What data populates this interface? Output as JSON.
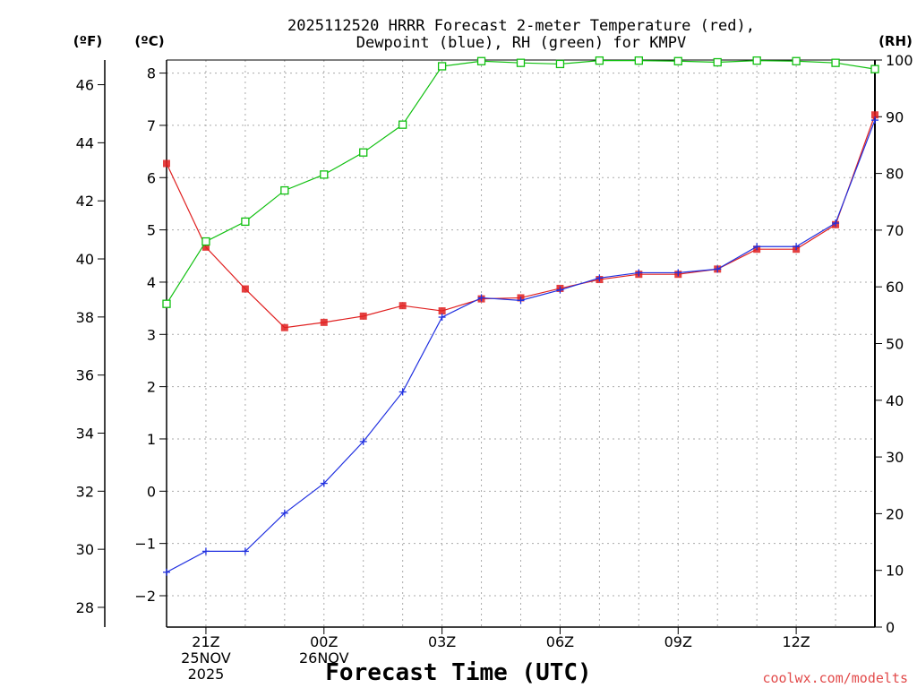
{
  "chart_data": {
    "type": "line",
    "title_line1": "2025112520 HRRR Forecast 2-meter Temperature (red),",
    "title_line2": "Dewpoint (blue), RH (green) for KMPV",
    "xlabel": "Forecast Time (UTC)",
    "credit": "coolwx.com/modelts",
    "units": {
      "fahrenheit": "(ºF)",
      "celsius": "(ºC)",
      "rh": "(RH)"
    },
    "x_hours": [
      0,
      1,
      2,
      3,
      4,
      5,
      6,
      7,
      8,
      9,
      10,
      11,
      12,
      13,
      14,
      15,
      16,
      17,
      18
    ],
    "x_ticks": [
      {
        "hour": 1,
        "lines": [
          "21Z",
          "25NOV",
          "2025"
        ]
      },
      {
        "hour": 4,
        "lines": [
          "00Z",
          "26NOV"
        ]
      },
      {
        "hour": 7,
        "lines": [
          "03Z"
        ]
      },
      {
        "hour": 10,
        "lines": [
          "06Z"
        ]
      },
      {
        "hour": 13,
        "lines": [
          "09Z"
        ]
      },
      {
        "hour": 16,
        "lines": [
          "12Z"
        ]
      }
    ],
    "y_celsius": {
      "range": [
        -2.6,
        8.25
      ],
      "ticks": [
        -2,
        -1,
        0,
        1,
        2,
        3,
        4,
        5,
        6,
        7,
        8
      ]
    },
    "y_fahrenheit": {
      "ticks": [
        28,
        30,
        32,
        34,
        36,
        38,
        40,
        42,
        44,
        46
      ]
    },
    "y_rh": {
      "range": [
        0,
        100
      ],
      "ticks": [
        0,
        10,
        20,
        30,
        40,
        50,
        60,
        70,
        80,
        90,
        100
      ]
    },
    "series": [
      {
        "name": "Temperature",
        "color": "#e02020",
        "marker": "filled-square",
        "axis": "celsius",
        "values": [
          6.27,
          4.67,
          3.87,
          3.13,
          3.23,
          3.35,
          3.55,
          3.45,
          3.68,
          3.7,
          3.88,
          4.05,
          4.15,
          4.15,
          4.25,
          4.63,
          4.63,
          5.1,
          7.2
        ]
      },
      {
        "name": "Dewpoint",
        "color": "#2030e0",
        "marker": "plus",
        "axis": "celsius",
        "values": [
          -1.55,
          -1.15,
          -1.15,
          -0.42,
          0.15,
          0.95,
          1.9,
          3.33,
          3.7,
          3.65,
          3.85,
          4.08,
          4.18,
          4.18,
          4.25,
          4.68,
          4.68,
          5.13,
          7.1
        ]
      },
      {
        "name": "RH",
        "color": "#10c010",
        "marker": "open-square",
        "axis": "rh",
        "values": [
          57,
          68,
          71.5,
          77,
          79.8,
          83.7,
          88.6,
          98.9,
          99.8,
          99.5,
          99.3,
          99.9,
          99.9,
          99.8,
          99.6,
          99.9,
          99.8,
          99.5,
          98.4
        ]
      }
    ]
  }
}
